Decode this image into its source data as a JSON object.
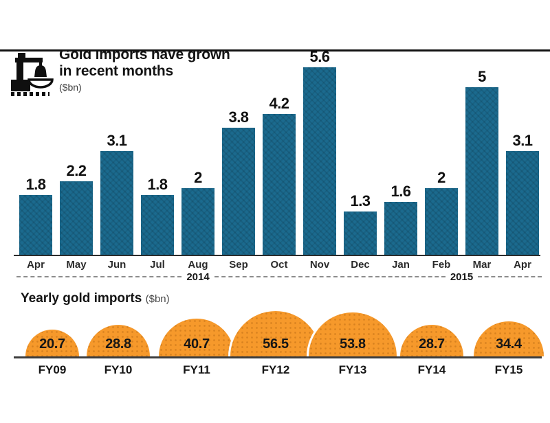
{
  "header": {
    "title_line1": "Gold imports have grown",
    "title_line2": "in recent months",
    "unit": "($bn)"
  },
  "chart_data": [
    {
      "type": "bar",
      "title": "Gold imports have grown in recent months",
      "ylabel": "Gold imports",
      "unit": "$bn",
      "categories": [
        "Apr",
        "May",
        "Jun",
        "Jul",
        "Aug",
        "Sep",
        "Oct",
        "Nov",
        "Dec",
        "Jan",
        "Feb",
        "Mar",
        "Apr"
      ],
      "values": [
        1.8,
        2.2,
        3.1,
        1.8,
        2,
        3.8,
        4.2,
        5.6,
        1.3,
        1.6,
        2,
        5,
        3.1
      ],
      "year_groups": [
        {
          "label": "2014",
          "start_index": 0,
          "end_index": 8
        },
        {
          "label": "2015",
          "start_index": 9,
          "end_index": 12
        }
      ],
      "ylim": [
        0,
        6
      ],
      "grid": false,
      "value_labels": true,
      "bar_color": "#1b6a8e"
    },
    {
      "type": "area",
      "subtype": "semicircle",
      "title": "Yearly gold imports",
      "unit": "($bn)",
      "categories": [
        "FY09",
        "FY10",
        "FY11",
        "FY12",
        "FY13",
        "FY14",
        "FY15"
      ],
      "values": [
        20.7,
        28.8,
        40.7,
        56.5,
        53.8,
        28.7,
        34.4
      ],
      "value_labels": true,
      "color": "#f6992b"
    }
  ],
  "icons": {
    "masthead": "gold-weighing-scale-icon"
  },
  "colors": {
    "bar_teal": "#1b6a8e",
    "dome_orange": "#f6992b",
    "rule_black": "#101010"
  }
}
